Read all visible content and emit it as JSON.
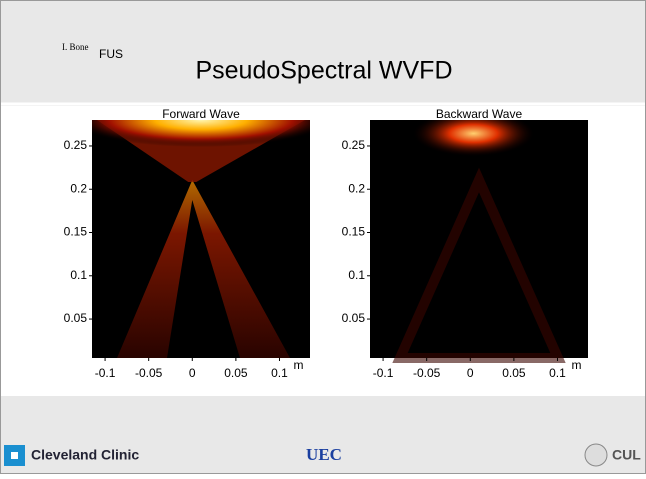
{
  "header": {
    "tag1": "I. Bone",
    "tag2": "FUS",
    "title": "PseudoSpectral WVFD"
  },
  "chart_data": [
    {
      "type": "heatmap",
      "title": "Forward Wave",
      "xlabel": "m",
      "xlim": [
        -0.115,
        0.135
      ],
      "xticks": [
        -0.1,
        -0.05,
        0,
        0.05,
        0.1
      ],
      "ylim": [
        0.005,
        0.28
      ],
      "yticks": [
        0.05,
        0.1,
        0.15,
        0.2,
        0.25
      ]
    },
    {
      "type": "heatmap",
      "title": "Backward Wave",
      "xlabel": "m",
      "xlim": [
        -0.115,
        0.135
      ],
      "xticks": [
        -0.1,
        -0.05,
        0,
        0.05,
        0.1
      ],
      "ylim": [
        0.005,
        0.28
      ],
      "yticks": [
        0.05,
        0.1,
        0.15,
        0.2,
        0.25
      ]
    }
  ],
  "footer": {
    "left": "Cleveland Clinic",
    "center": "UEC",
    "right": "CUL"
  }
}
